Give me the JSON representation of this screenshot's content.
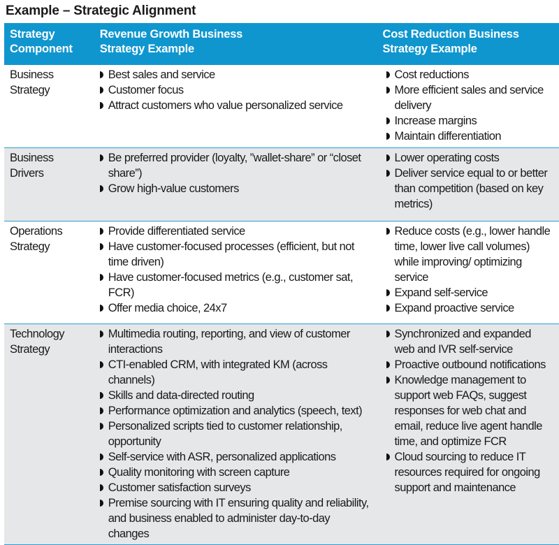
{
  "title": "Example – Strategic Alignment",
  "header": [
    "Strategy Component",
    "Revenue Growth Business Strategy Example",
    "Cost Reduction Business Strategy Example"
  ],
  "rows": [
    {
      "component": "Business Strategy",
      "revenue": [
        "Best sales and service",
        "Customer focus",
        " Attract customers who value personalized service"
      ],
      "cost": [
        "Cost reductions",
        "More efficient sales and service delivery",
        "Increase margins",
        "Maintain differentiation"
      ]
    },
    {
      "component": "Business Drivers",
      "revenue": [
        "Be preferred provider (loyalty, ”wallet-share” or “closet share”)",
        "Grow high-value customers"
      ],
      "cost": [
        "Lower operating costs",
        "Deliver service equal to or better than competition (based on key metrics)"
      ]
    },
    {
      "component": "Operations Strategy",
      "revenue": [
        "Provide differentiated service",
        "Have customer-focused processes (efficient, but not time driven)",
        "Have customer-focused metrics (e.g., customer sat, FCR)",
        "Offer media choice, 24x7"
      ],
      "cost": [
        "Reduce costs (e.g., lower handle time, lower live call volumes) while improving/ optimizing service",
        "Expand self-service",
        "Expand proactive service"
      ]
    },
    {
      "component": "Technology Strategy",
      "revenue": [
        "Multimedia routing, reporting, and view of customer interactions",
        "CTI-enabled CRM, with integrated KM (across channels)",
        "Skills and data-directed routing",
        "Performance optimization and analytics (speech, text)",
        "Personalized scripts tied to customer relationship, opportunity",
        "Self-service with ASR, personalized applications",
        "Quality monitoring with screen capture",
        "Customer satisfaction surveys",
        "Premise sourcing with IT ensuring quality and reliability, and business enabled to administer day-to-day changes"
      ],
      "cost": [
        "Synchronized and expanded web and IVR self-service",
        "Proactive outbound notifications",
        "Knowledge management to support web FAQs, suggest responses for web chat and email, reduce live agent handle time, and optimize FCR",
        "Cloud sourcing to reduce IT resources required for ongoing support and maintenance"
      ]
    }
  ]
}
